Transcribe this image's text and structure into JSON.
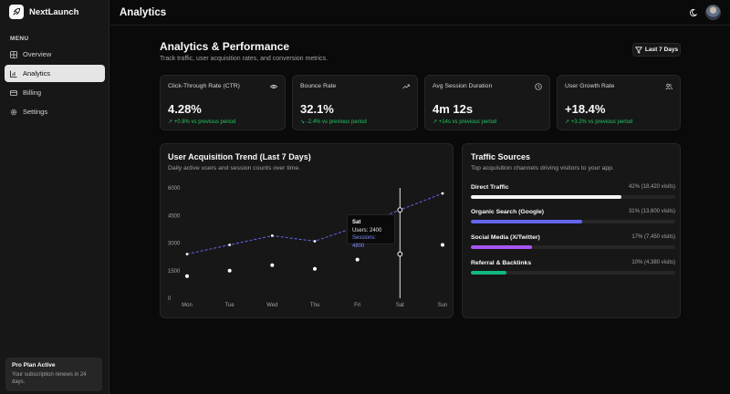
{
  "brand": {
    "name": "NextLaunch"
  },
  "sidebar": {
    "menu_label": "MENU",
    "items": [
      {
        "label": "Overview",
        "icon": "layout-icon",
        "active": false
      },
      {
        "label": "Analytics",
        "icon": "chart-icon",
        "active": true
      },
      {
        "label": "Billing",
        "icon": "card-icon",
        "active": false
      },
      {
        "label": "Settings",
        "icon": "gear-icon",
        "active": false
      }
    ],
    "plan": {
      "title": "Pro Plan Active",
      "text": "Your subscription renews in 24 days."
    }
  },
  "topbar": {
    "title": "Analytics"
  },
  "header": {
    "title": "Analytics & Performance",
    "subtitle": "Track traffic, user acquisition rates, and conversion metrics.",
    "range_label": "Last 7 Days"
  },
  "stats": [
    {
      "label": "Click-Through Rate (CTR)",
      "value": "4.28%",
      "delta": "↗ +0.8% vs previous period",
      "icon": "eye-icon"
    },
    {
      "label": "Bounce Rate",
      "value": "32.1%",
      "delta": "↘ -2.4% vs previous period",
      "icon": "trend-icon"
    },
    {
      "label": "Avg Session Duration",
      "value": "4m 12s",
      "delta": "↗ +14s vs previous period",
      "icon": "clock-icon"
    },
    {
      "label": "User Growth Rate",
      "value": "+18.4%",
      "delta": "↗ +3.2% vs previous period",
      "icon": "users-icon"
    }
  ],
  "trend": {
    "title": "User Acquisition Trend (Last 7 Days)",
    "subtitle": "Daily active users and session counts over time.",
    "tooltip": {
      "day": "Sat",
      "users": "Users: 2400",
      "sessions": "Sessions: 4800"
    }
  },
  "chart_data": {
    "type": "line",
    "x": [
      "Mon",
      "Tue",
      "Wed",
      "Thu",
      "Fri",
      "Sat",
      "Sun"
    ],
    "yticks": [
      "0",
      "1500",
      "3000",
      "4500",
      "6000"
    ],
    "ylim": [
      0,
      6000
    ],
    "series": [
      {
        "name": "Sessions",
        "values": [
          2400,
          2900,
          3400,
          3100,
          3900,
          4800,
          5700
        ]
      },
      {
        "name": "Users",
        "values": [
          1200,
          1500,
          1800,
          1600,
          2100,
          2400,
          2900
        ]
      }
    ],
    "highlight_index": 5,
    "colors": {
      "sessions": "#6366f1",
      "users": "#ffffff"
    }
  },
  "traffic": {
    "title": "Traffic Sources",
    "subtitle": "Top acquisition channels driving visitors to your app.",
    "sources": [
      {
        "name": "Direct Traffic",
        "value": "42% (18,420 visits)",
        "pct": 42,
        "color": "#f5f5f5"
      },
      {
        "name": "Organic Search (Google)",
        "value": "31% (13,600 visits)",
        "pct": 31,
        "color": "#6366f1"
      },
      {
        "name": "Social Media (X/Twitter)",
        "value": "17% (7,450 visits)",
        "pct": 17,
        "color": "#a855f7"
      },
      {
        "name": "Referral & Backlinks",
        "value": "10% (4,380 visits)",
        "pct": 10,
        "color": "#10b981"
      }
    ]
  }
}
